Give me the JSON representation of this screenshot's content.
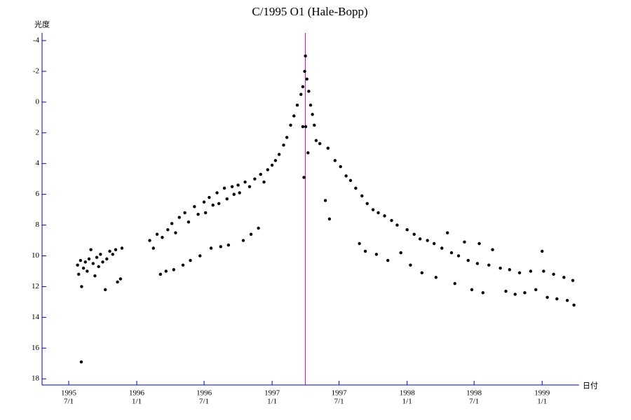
{
  "chart_data": {
    "type": "scatter",
    "title": "C/1995 O1 (Hale-Bopp)",
    "y_label": "光度",
    "x_label": "日付",
    "xlim": [
      "1995-04-20",
      "1999-04-11"
    ],
    "ylim": [
      18.4,
      -4.5
    ],
    "yticks": [
      -4,
      -2,
      0,
      2,
      4,
      6,
      8,
      10,
      12,
      14,
      16,
      18
    ],
    "xticks": [
      {
        "value": "1995-07-01",
        "label": [
          "1995",
          "7/1"
        ]
      },
      {
        "value": "1996-01-01",
        "label": [
          "1996",
          "1/1"
        ]
      },
      {
        "value": "1996-07-01",
        "label": [
          "1996",
          "7/1"
        ]
      },
      {
        "value": "1997-01-01",
        "label": [
          "1997",
          "1/1"
        ]
      },
      {
        "value": "1997-07-01",
        "label": [
          "1997",
          "7/1"
        ]
      },
      {
        "value": "1998-01-01",
        "label": [
          "1998",
          "1/1"
        ]
      },
      {
        "value": "1998-07-01",
        "label": [
          "1998",
          "7/1"
        ]
      },
      {
        "value": "1999-01-01",
        "label": [
          "1999",
          "1/1"
        ]
      }
    ],
    "axis_color": "#0000c8",
    "marker_x": "1997-04-01",
    "marker_color": "#c000c0",
    "series": [
      {
        "color": "#000000",
        "x": [
          "1995-07-25",
          "1995-07-28",
          "1995-08-02",
          "1995-08-05",
          "1995-08-10",
          "1995-08-15",
          "1995-08-20",
          "1995-08-25",
          "1995-08-30",
          "1995-09-05",
          "1995-09-10",
          "1995-09-15",
          "1995-09-20",
          "1995-09-25",
          "1995-10-01",
          "1995-10-08",
          "1995-10-12",
          "1995-10-20",
          "1995-10-28",
          "1995-11-05",
          "1995-11-10",
          "1995-11-18",
          "1995-11-22",
          "1995-08-04",
          "1996-02-05",
          "1996-02-15",
          "1996-02-25",
          "1996-03-05",
          "1996-03-10",
          "1996-03-20",
          "1996-03-25",
          "1996-04-05",
          "1996-04-10",
          "1996-04-15",
          "1996-04-25",
          "1996-05-05",
          "1996-05-10",
          "1996-05-20",
          "1996-05-25",
          "1996-06-05",
          "1996-06-15",
          "1996-06-20",
          "1996-07-01",
          "1996-07-05",
          "1996-07-15",
          "1996-07-20",
          "1996-07-25",
          "1996-08-05",
          "1996-08-10",
          "1996-08-15",
          "1996-08-25",
          "1996-09-01",
          "1996-09-05",
          "1996-09-15",
          "1996-09-20",
          "1996-10-01",
          "1996-10-05",
          "1996-10-15",
          "1996-10-20",
          "1996-11-01",
          "1996-11-05",
          "1996-11-15",
          "1996-11-25",
          "1996-12-01",
          "1996-12-10",
          "1996-12-20",
          "1997-01-01",
          "1997-01-10",
          "1997-01-20",
          "1997-02-01",
          "1997-02-10",
          "1997-02-20",
          "1997-03-01",
          "1997-03-10",
          "1997-03-20",
          "1997-03-25",
          "1997-03-30",
          "1997-04-01",
          "1997-04-05",
          "1997-04-10",
          "1997-04-15",
          "1997-04-20",
          "1997-04-25",
          "1997-03-25",
          "1997-04-02",
          "1997-03-28",
          "1997-04-08",
          "1997-04-30",
          "1997-05-10",
          "1997-05-25",
          "1997-06-05",
          "1997-06-01",
          "1997-06-20",
          "1997-07-05",
          "1997-07-20",
          "1997-08-01",
          "1997-08-15",
          "1997-08-25",
          "1997-09-01",
          "1997-09-10",
          "1997-09-15",
          "1997-10-01",
          "1997-10-10",
          "1997-10-15",
          "1997-11-01",
          "1997-11-10",
          "1997-11-20",
          "1997-12-05",
          "1997-12-15",
          "1998-01-01",
          "1998-01-10",
          "1998-01-20",
          "1998-02-05",
          "1998-02-10",
          "1998-02-25",
          "1998-03-15",
          "1998-03-20",
          "1998-04-05",
          "1998-04-20",
          "1998-05-01",
          "1998-05-10",
          "1998-05-20",
          "1998-06-05",
          "1998-06-15",
          "1998-06-25",
          "1998-07-10",
          "1998-07-15",
          "1998-07-25",
          "1998-08-10",
          "1998-08-20",
          "1998-09-10",
          "1998-09-25",
          "1998-10-05",
          "1998-10-20",
          "1998-11-01",
          "1998-11-15",
          "1998-12-01",
          "1998-12-15",
          "1999-01-01",
          "1999-01-05",
          "1999-01-15",
          "1999-02-01",
          "1999-02-10",
          "1999-03-01",
          "1999-03-10",
          "1999-03-25",
          "1999-03-28"
        ],
        "values": [
          10.6,
          11.2,
          10.3,
          12.0,
          10.8,
          10.4,
          11.0,
          10.2,
          9.6,
          10.5,
          11.3,
          10.1,
          10.7,
          9.9,
          10.4,
          12.2,
          10.2,
          9.7,
          9.9,
          9.6,
          11.7,
          11.5,
          9.5,
          16.9,
          9.0,
          9.5,
          8.6,
          11.2,
          8.8,
          11.0,
          8.3,
          7.9,
          10.9,
          8.5,
          7.5,
          10.6,
          7.2,
          7.8,
          10.3,
          6.8,
          7.3,
          10.0,
          6.5,
          7.2,
          6.2,
          9.5,
          6.7,
          5.9,
          6.6,
          9.4,
          5.6,
          6.3,
          9.3,
          5.5,
          6.0,
          5.4,
          5.9,
          9.0,
          5.2,
          5.5,
          8.6,
          5.0,
          8.2,
          4.7,
          5.2,
          4.4,
          4.1,
          3.8,
          3.4,
          2.8,
          2.3,
          1.5,
          0.9,
          0.2,
          -0.5,
          -1.0,
          -2.0,
          -3.0,
          -1.5,
          -0.7,
          0.2,
          0.8,
          1.5,
          1.6,
          1.6,
          4.9,
          3.3,
          2.5,
          2.7,
          6.4,
          7.6,
          3.0,
          3.8,
          4.2,
          4.8,
          5.1,
          5.6,
          9.2,
          6.1,
          9.7,
          6.6,
          7.0,
          9.9,
          7.2,
          7.4,
          10.3,
          7.7,
          8.0,
          9.8,
          8.3,
          10.6,
          8.6,
          8.9,
          11.1,
          9.0,
          9.2,
          11.4,
          9.5,
          8.5,
          9.8,
          11.8,
          10.0,
          9.1,
          10.3,
          12.2,
          10.5,
          9.2,
          12.4,
          10.6,
          9.6,
          10.8,
          12.3,
          10.9,
          12.5,
          11.1,
          12.4,
          11.0,
          12.2,
          9.7,
          11.0,
          12.7,
          11.2,
          12.8,
          11.4,
          12.9,
          11.6,
          13.2
        ]
      }
    ]
  }
}
